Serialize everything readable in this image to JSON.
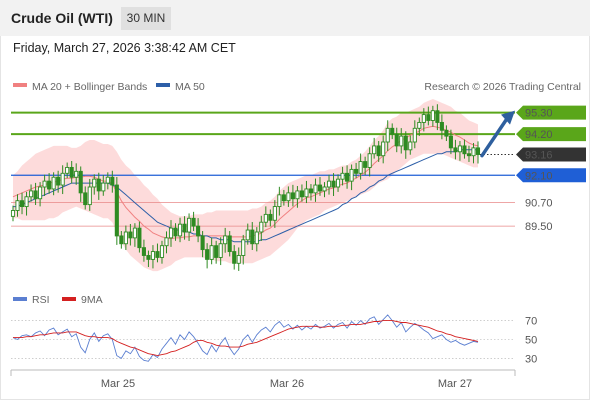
{
  "header": {
    "instrument": "Crude Oil (WTI)",
    "timeframe": "30 MIN",
    "timestamp": "Friday, March 27, 2026 3:38:42 AM CET"
  },
  "legend": {
    "ma20": "MA 20 + Bollinger Bands",
    "ma50": "MA 50",
    "credit": "Research © 2026 Trading Central",
    "rsi": "RSI",
    "ma9": "9MA"
  },
  "colors": {
    "candle": "#2e8b22",
    "ma20": "#f08080",
    "bands": "#fdd5d5",
    "ma50": "#2d5fa8",
    "resistance": "#5aa61a",
    "support": "#1f5fd6",
    "target": "#d02020",
    "price": "#333333",
    "arrow": "#2e5f9e",
    "rsi": "#5b7fd1",
    "ma9": "#d42020"
  },
  "chart_data": [
    {
      "type": "candlestick",
      "x_labels": [
        "Mar 25",
        "Mar 26",
        "Mar 27"
      ],
      "y_range": [
        86.9,
        96.1
      ],
      "levels": [
        {
          "value": 95.3,
          "label": "95.30",
          "kind": "resistance"
        },
        {
          "value": 94.2,
          "label": "94.20",
          "kind": "resistance"
        },
        {
          "value": 93.16,
          "label": "93.16",
          "kind": "price"
        },
        {
          "value": 92.1,
          "label": "92.10",
          "kind": "support"
        },
        {
          "value": 90.7,
          "label": "90.70",
          "kind": "target"
        },
        {
          "value": 89.5,
          "label": "89.50",
          "kind": "target"
        }
      ],
      "close_series": [
        90.3,
        90.8,
        90.5,
        91.0,
        91.3,
        90.9,
        91.5,
        91.8,
        91.4,
        92.0,
        91.6,
        92.2,
        92.5,
        92.0,
        92.3,
        91.2,
        90.6,
        91.5,
        91.9,
        91.3,
        91.7,
        92.0,
        91.6,
        89.0,
        88.6,
        89.2,
        88.9,
        89.4,
        88.4,
        88.0,
        87.8,
        88.2,
        87.9,
        88.5,
        88.9,
        89.4,
        89.0,
        89.6,
        89.2,
        89.9,
        89.5,
        89.0,
        88.3,
        87.8,
        88.5,
        87.9,
        88.6,
        89.0,
        88.2,
        87.6,
        88.0,
        88.8,
        89.3,
        88.6,
        89.2,
        89.7,
        90.1,
        89.8,
        90.5,
        91.1,
        90.8,
        91.2,
        90.9,
        91.3,
        91.0,
        91.4,
        91.2,
        91.6,
        91.3,
        91.5,
        91.8,
        91.5,
        91.9,
        92.2,
        91.8,
        92.4,
        92.2,
        92.8,
        92.5,
        93.2,
        93.6,
        93.1,
        93.8,
        94.5,
        94.2,
        93.6,
        94.1,
        93.4,
        93.8,
        94.5,
        94.8,
        95.2,
        94.9,
        95.4,
        94.8,
        94.4,
        94.1,
        93.5,
        93.3,
        93.6,
        93.2,
        93.1,
        93.5,
        93.16
      ],
      "bands_upper": [
        92.1,
        92.3,
        92.6,
        92.8,
        93.0,
        93.2,
        93.3,
        93.4,
        93.5,
        93.6,
        93.6,
        93.6,
        93.6,
        93.5,
        93.5,
        93.6,
        93.8,
        93.9,
        93.9,
        93.8,
        93.7,
        93.7,
        93.6,
        93.3,
        92.9,
        92.6,
        92.4,
        92.1,
        91.9,
        91.6,
        91.4,
        91.1,
        90.9,
        90.6,
        90.4,
        90.2,
        90.1,
        90.0,
        90.0,
        90.0,
        90.1,
        90.1,
        90.1,
        90.2,
        90.2,
        90.3,
        90.3,
        90.3,
        90.3,
        90.3,
        90.3,
        90.3,
        90.3,
        90.4,
        90.4,
        90.5,
        90.7,
        90.8,
        91.0,
        91.3,
        91.5,
        91.7,
        91.8,
        91.9,
        92.0,
        92.1,
        92.1,
        92.2,
        92.3,
        92.3,
        92.4,
        92.4,
        92.5,
        92.6,
        92.6,
        92.8,
        92.9,
        93.1,
        93.3,
        93.6,
        93.9,
        94.1,
        94.4,
        94.8,
        95.0,
        95.1,
        95.3,
        95.3,
        95.4,
        95.5,
        95.6,
        95.8,
        95.9,
        96.0,
        95.9,
        95.8,
        95.7,
        95.6,
        95.4,
        95.3,
        95.1,
        94.9,
        94.8,
        94.7
      ],
      "bands_lower": [
        89.9,
        89.9,
        89.8,
        89.8,
        89.8,
        89.8,
        89.8,
        89.8,
        89.9,
        89.9,
        90.0,
        90.2,
        90.3,
        90.4,
        90.5,
        90.4,
        90.3,
        90.2,
        90.1,
        90.0,
        89.9,
        89.9,
        89.7,
        89.2,
        88.7,
        88.3,
        88.0,
        87.8,
        87.6,
        87.4,
        87.3,
        87.2,
        87.2,
        87.3,
        87.4,
        87.5,
        87.7,
        87.8,
        87.9,
        87.9,
        87.9,
        87.9,
        87.9,
        87.8,
        87.8,
        87.7,
        87.7,
        87.7,
        87.6,
        87.6,
        87.6,
        87.6,
        87.6,
        87.6,
        87.7,
        87.8,
        87.9,
        88.0,
        88.2,
        88.4,
        88.6,
        88.8,
        89.1,
        89.4,
        89.6,
        89.8,
        89.9,
        90.0,
        90.1,
        90.3,
        90.4,
        90.5,
        90.6,
        90.7,
        90.8,
        90.9,
        91.0,
        91.1,
        91.2,
        91.3,
        91.5,
        91.7,
        91.8,
        91.9,
        92.1,
        92.3,
        92.5,
        92.7,
        92.9,
        93.0,
        93.1,
        93.2,
        93.2,
        93.2,
        93.2,
        93.2,
        93.1,
        93.0,
        92.9,
        92.8,
        92.7,
        92.6,
        92.5,
        92.5
      ],
      "ma50_series": [
        90.5,
        90.5,
        90.6,
        90.7,
        90.8,
        90.9,
        91.0,
        91.1,
        91.2,
        91.3,
        91.4,
        91.5,
        91.6,
        91.7,
        91.7,
        91.7,
        91.7,
        91.7,
        91.7,
        91.7,
        91.7,
        91.7,
        91.6,
        91.5,
        91.3,
        91.1,
        90.9,
        90.7,
        90.5,
        90.3,
        90.1,
        89.9,
        89.7,
        89.6,
        89.5,
        89.4,
        89.3,
        89.3,
        89.2,
        89.2,
        89.1,
        89.1,
        89.0,
        89.0,
        88.9,
        88.9,
        88.8,
        88.8,
        88.8,
        88.7,
        88.7,
        88.7,
        88.7,
        88.7,
        88.7,
        88.8,
        88.8,
        88.9,
        89.0,
        89.1,
        89.2,
        89.3,
        89.4,
        89.5,
        89.6,
        89.7,
        89.8,
        89.9,
        90.0,
        90.1,
        90.2,
        90.3,
        90.4,
        90.6,
        90.7,
        90.9,
        91.0,
        91.2,
        91.3,
        91.5,
        91.6,
        91.8,
        91.9,
        92.1,
        92.2,
        92.3,
        92.4,
        92.5,
        92.6,
        92.7,
        92.8,
        92.9,
        93.0,
        93.1,
        93.2,
        93.2,
        93.3,
        93.3,
        93.3,
        93.4,
        93.4,
        93.4,
        93.4,
        93.4
      ]
    },
    {
      "type": "line",
      "name": "RSI",
      "y_ticks": [
        30,
        50,
        70
      ],
      "y_range": [
        22,
        78
      ],
      "rsi_series": [
        52,
        50,
        54,
        55,
        53,
        57,
        59,
        54,
        60,
        62,
        55,
        58,
        61,
        53,
        56,
        42,
        36,
        50,
        57,
        48,
        54,
        56,
        50,
        33,
        30,
        38,
        35,
        42,
        32,
        28,
        27,
        34,
        31,
        40,
        46,
        52,
        45,
        55,
        50,
        58,
        53,
        46,
        38,
        34,
        44,
        37,
        46,
        52,
        41,
        34,
        40,
        50,
        55,
        47,
        55,
        60,
        63,
        58,
        65,
        69,
        63,
        66,
        61,
        65,
        60,
        64,
        61,
        66,
        62,
        64,
        67,
        62,
        66,
        68,
        62,
        69,
        65,
        70,
        66,
        72,
        74,
        66,
        71,
        76,
        70,
        63,
        68,
        58,
        63,
        67,
        64,
        60,
        57,
        51,
        53,
        55,
        50,
        47,
        49,
        46,
        44,
        46,
        48,
        47
      ],
      "ma9_series": [
        52,
        52,
        52,
        53,
        53,
        54,
        55,
        55,
        56,
        57,
        57,
        57,
        58,
        58,
        58,
        56,
        54,
        53,
        53,
        52,
        52,
        52,
        51,
        48,
        46,
        44,
        42,
        41,
        39,
        37,
        35,
        34,
        33,
        34,
        35,
        37,
        38,
        40,
        42,
        44,
        47,
        49,
        49,
        47,
        46,
        44,
        43,
        43,
        42,
        42,
        42,
        43,
        45,
        46,
        47,
        49,
        51,
        53,
        55,
        57,
        59,
        61,
        62,
        63,
        64,
        64,
        64,
        64,
        63,
        63,
        64,
        64,
        64,
        65,
        65,
        66,
        66,
        66,
        67,
        68,
        69,
        69,
        70,
        70,
        70,
        69,
        68,
        68,
        67,
        66,
        65,
        64,
        63,
        61,
        59,
        58,
        56,
        55,
        53,
        52,
        51,
        50,
        49,
        48
      ],
      "x_labels": [
        "Mar 25",
        "Mar 26",
        "Mar 27"
      ]
    }
  ]
}
